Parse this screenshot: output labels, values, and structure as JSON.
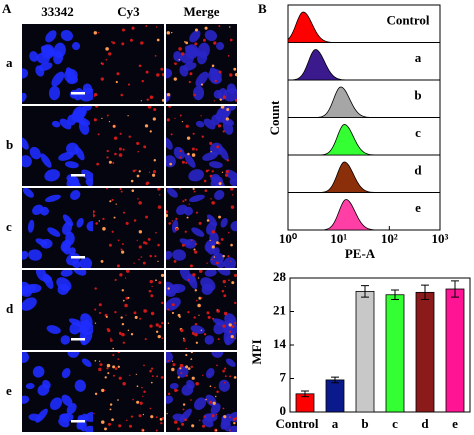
{
  "panel_a": {
    "label": "A",
    "columns": [
      "33342",
      "Cy3",
      "Merge"
    ],
    "rows": [
      "a",
      "b",
      "c",
      "d",
      "e"
    ]
  },
  "panel_b": {
    "label": "B"
  },
  "chart_data": [
    {
      "type": "density",
      "xlabel": "PE-A",
      "ylabel": "Count",
      "log_x": true,
      "xlim": [
        1,
        1000
      ],
      "xticks": [
        {
          "value": 1,
          "label": "10⁰"
        },
        {
          "value": 10,
          "label": "10¹"
        },
        {
          "value": 100,
          "label": "10²"
        },
        {
          "value": 1000,
          "label": "10³"
        }
      ],
      "series": [
        {
          "name": "Control",
          "color": "#ff0000",
          "peak": 2
        },
        {
          "name": "a",
          "color": "#3a1a8c",
          "peak": 3.5
        },
        {
          "name": "b",
          "color": "#a6a6a6",
          "peak": 11
        },
        {
          "name": "c",
          "color": "#33ff33",
          "peak": 13
        },
        {
          "name": "d",
          "color": "#8b2f0a",
          "peak": 13
        },
        {
          "name": "e",
          "color": "#ff3fa6",
          "peak": 14
        }
      ]
    },
    {
      "type": "bar",
      "ylabel": "MFI",
      "categories": [
        "Control",
        "a",
        "b",
        "c",
        "d",
        "e"
      ],
      "values": [
        3.8,
        6.7,
        25.2,
        24.5,
        25.0,
        25.7
      ],
      "errors": [
        0.6,
        0.6,
        1.2,
        1.0,
        1.5,
        1.7
      ],
      "colors": [
        "#ff0000",
        "#0a1a8c",
        "#c8c8c8",
        "#33ff33",
        "#8b1a1a",
        "#ff1493"
      ],
      "ylim": [
        0,
        28
      ],
      "yticks": [
        0,
        7,
        14,
        21,
        28
      ]
    }
  ]
}
